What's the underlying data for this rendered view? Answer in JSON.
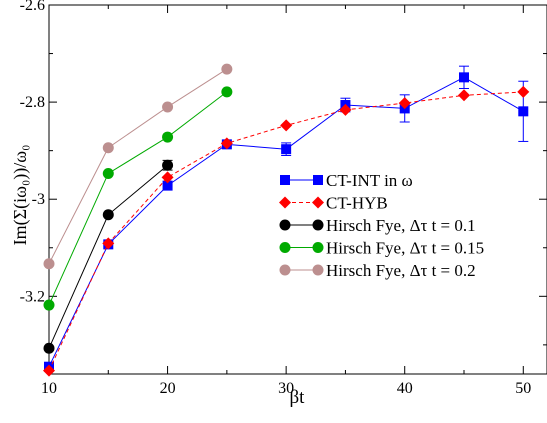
{
  "chart_data": {
    "type": "line",
    "title": "",
    "xlabel": "βt",
    "ylabel": "Im(Σ(iω₀))/ω₀",
    "xlim": [
      10,
      52
    ],
    "ylim": [
      -3.36,
      -2.6
    ],
    "x_ticks": [
      "10",
      "20",
      "30",
      "40",
      "50"
    ],
    "y_ticks": [
      "-3.2",
      "-3",
      "-2.8",
      "-2.6"
    ],
    "legend_position": "center-right",
    "grid": false,
    "series": [
      {
        "name": "CT-INT in ω",
        "color": "#0000ff",
        "marker": "square",
        "line": "solid",
        "x": [
          10,
          15,
          20,
          25,
          30,
          35,
          40,
          45,
          50
        ],
        "y": [
          -3.345,
          -3.093,
          -2.972,
          -2.887,
          -2.897,
          -2.806,
          -2.813,
          -2.749,
          -2.819
        ],
        "yerr": [
          0,
          0,
          0,
          0,
          0.013,
          0.014,
          0.028,
          0.023,
          0.062
        ]
      },
      {
        "name": "CT-HYB",
        "color": "#ff0000",
        "marker": "diamond",
        "line": "dashed",
        "x": [
          10,
          15,
          20,
          25,
          30,
          35,
          40,
          45,
          50
        ],
        "y": [
          -3.353,
          -3.091,
          -2.955,
          -2.885,
          -2.848,
          -2.816,
          -2.802,
          -2.786,
          -2.779
        ],
        "yerr": [
          0,
          0,
          0,
          0,
          0,
          0,
          0,
          0,
          0
        ]
      },
      {
        "name": "Hirsch Fye, Δτ t = 0.1",
        "color": "#000000",
        "marker": "circle",
        "line": "solid",
        "x": [
          10,
          15,
          20
        ],
        "y": [
          -3.307,
          -3.032,
          -2.93
        ],
        "yerr": [
          0,
          0,
          0.01
        ]
      },
      {
        "name": "Hirsch Fye, Δτ t = 0.15",
        "color": "#00aa00",
        "marker": "circle",
        "line": "solid",
        "x": [
          10,
          15,
          20,
          25
        ],
        "y": [
          -3.218,
          -2.947,
          -2.872,
          -2.779
        ],
        "yerr": [
          0,
          0,
          0,
          0
        ]
      },
      {
        "name": "Hirsch Fye, Δτ t = 0.2",
        "color": "#bc8f8f",
        "marker": "circle",
        "line": "solid",
        "x": [
          10,
          15,
          20,
          25
        ],
        "y": [
          -3.133,
          -2.894,
          -2.81,
          -2.732
        ],
        "yerr": [
          0,
          0,
          0,
          0
        ]
      }
    ]
  }
}
